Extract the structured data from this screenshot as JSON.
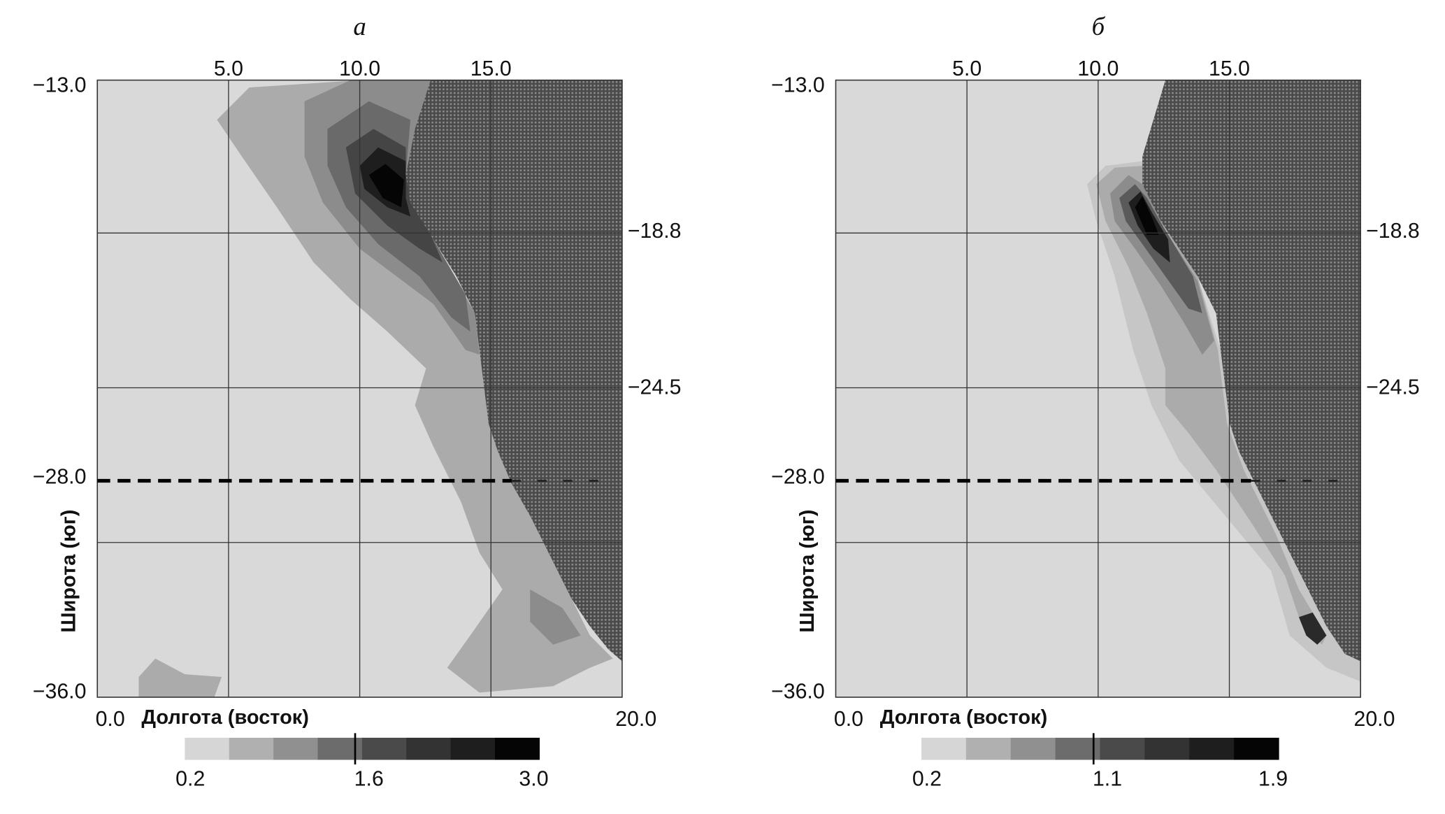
{
  "panels": [
    {
      "label": "а",
      "x_ticks_top": [
        "5.0",
        "10.0",
        "15.0"
      ],
      "y_ticks_left": [
        "−13.0",
        "−28.0",
        "−36.0"
      ],
      "y_ticks_right": [
        "−18.8",
        "−24.5"
      ],
      "x_min": "0.0",
      "x_max": "20.0",
      "x_axis_label": "Долгота (восток)",
      "y_axis_label": "Широта (юг)",
      "colorbar_labels": [
        "0.2",
        "1.6",
        "3.0"
      ]
    },
    {
      "label": "б",
      "x_ticks_top": [
        "5.0",
        "10.0",
        "15.0"
      ],
      "y_ticks_left": [
        "−13.0",
        "−28.0",
        "−36.0"
      ],
      "y_ticks_right": [
        "−18.8",
        "−24.5"
      ],
      "x_min": "0.0",
      "x_max": "20.0",
      "x_axis_label": "Долгота (восток)",
      "y_axis_label": "Широта (юг)",
      "colorbar_labels": [
        "0.2",
        "1.1",
        "1.9"
      ]
    }
  ]
}
